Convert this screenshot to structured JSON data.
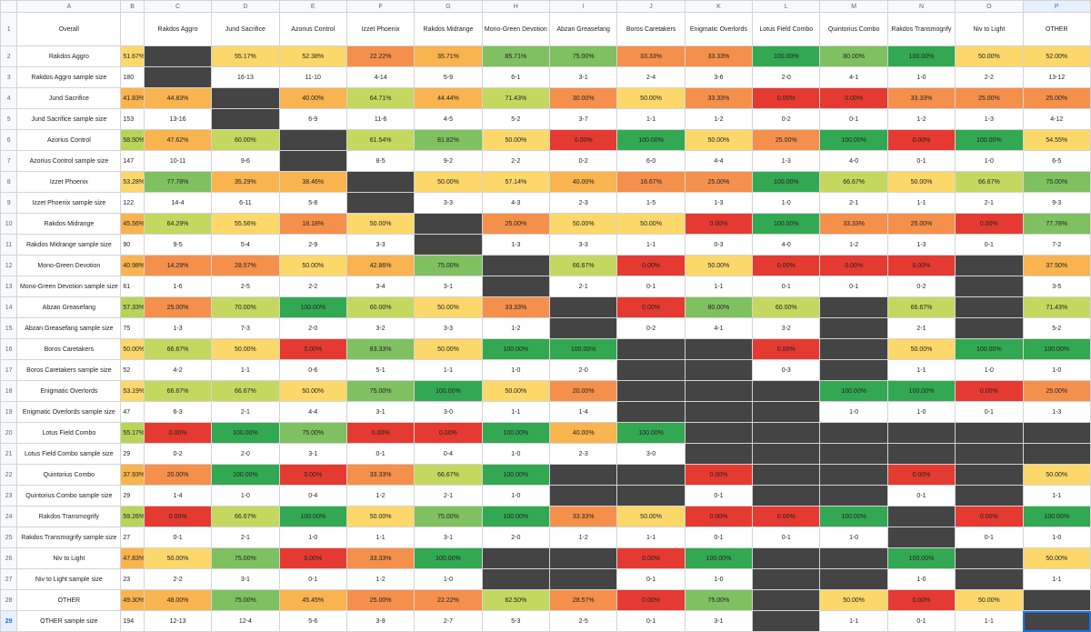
{
  "column_letters": [
    "A",
    "B",
    "C",
    "D",
    "E",
    "F",
    "G",
    "H",
    "I",
    "J",
    "K",
    "L",
    "M",
    "N",
    "O",
    "P"
  ],
  "selected_column": "P",
  "header_row": {
    "row_number": "1",
    "title": "Overall",
    "opponents": [
      "Rakdos Aggro",
      "Jund Sacrifice",
      "Azorius Control",
      "Izzet Phoenix",
      "Rakdos Midrange",
      "Mono-Green Devotion",
      "Abzan Greasefang",
      "Boros Caretakers",
      "Enigmatic Overlords",
      "Lotus Field Combo",
      "Quintorius Combo",
      "Rakdos Transmogrify",
      "Niv to Light",
      "OTHER"
    ]
  },
  "colors": {
    "dark": "#444444",
    "red": "#e53a31",
    "orange": "#f4904b",
    "light_orange": "#f9b34f",
    "yellow": "#fcd86b",
    "light_green": "#c4d85f",
    "green": "#7fc060",
    "dark_green": "#32a852",
    "winrate_orange": "#f9b34f",
    "winrate_yellow": "#fcd86b",
    "winrate_green": "#b8d45a"
  },
  "rows": [
    {
      "num": "2",
      "label": "Rakdos Aggro",
      "wr": "51.67%",
      "cells": [
        "",
        "55.17%",
        "52.38%",
        "22.22%",
        "35.71%",
        "85.71%",
        "75.00%",
        "33.33%",
        "33.33%",
        "100.00%",
        "80.00%",
        "100.00%",
        "50.00%",
        "52.00%"
      ]
    },
    {
      "num": "3",
      "label": "Rakdos Aggro sample size",
      "wr": "180",
      "cells": [
        "",
        "16-13",
        "11-10",
        "4-14",
        "5-9",
        "6-1",
        "3-1",
        "2-4",
        "3-6",
        "2-0",
        "4-1",
        "1-0",
        "2-2",
        "13-12"
      ]
    },
    {
      "num": "4",
      "label": "Jund Sacrifice",
      "wr": "41.83%",
      "cells": [
        "44.83%",
        "",
        "40.00%",
        "64.71%",
        "44.44%",
        "71.43%",
        "30.00%",
        "50.00%",
        "33.33%",
        "0.00%",
        "0.00%",
        "33.33%",
        "25.00%",
        "25.00%"
      ]
    },
    {
      "num": "5",
      "label": "Jund Sacrifice sample size",
      "wr": "153",
      "cells": [
        "13-16",
        "",
        "6-9",
        "11-6",
        "4-5",
        "5-2",
        "3-7",
        "1-1",
        "1-2",
        "0-2",
        "0-1",
        "1-2",
        "1-3",
        "4-12"
      ]
    },
    {
      "num": "6",
      "label": "Azorius Control",
      "wr": "58.50%",
      "cells": [
        "47.62%",
        "60.00%",
        "",
        "61.54%",
        "81.82%",
        "50.00%",
        "0.00%",
        "100.00%",
        "50.00%",
        "25.00%",
        "100.00%",
        "0.00%",
        "100.00%",
        "54.55%"
      ]
    },
    {
      "num": "7",
      "label": "Azorius Control sample size",
      "wr": "147",
      "cells": [
        "10-11",
        "9-6",
        "",
        "8-5",
        "9-2",
        "2-2",
        "0-2",
        "6-0",
        "4-4",
        "1-3",
        "4-0",
        "0-1",
        "1-0",
        "6-5"
      ]
    },
    {
      "num": "8",
      "label": "Izzet Phoenix",
      "wr": "53.28%",
      "cells": [
        "77.78%",
        "35.29%",
        "38.46%",
        "",
        "50.00%",
        "57.14%",
        "40.00%",
        "16.67%",
        "25.00%",
        "100.00%",
        "66.67%",
        "50.00%",
        "66.67%",
        "75.00%"
      ]
    },
    {
      "num": "9",
      "label": "Izzet Phoenix sample size",
      "wr": "122",
      "cells": [
        "14-4",
        "6-11",
        "5-8",
        "",
        "3-3",
        "4-3",
        "2-3",
        "1-5",
        "1-3",
        "1-0",
        "2-1",
        "1-1",
        "2-1",
        "9-3"
      ]
    },
    {
      "num": "10",
      "label": "Rakdos Midrange",
      "wr": "45.56%",
      "cells": [
        "64.29%",
        "55.56%",
        "18.18%",
        "50.00%",
        "",
        "25.00%",
        "50.00%",
        "50.00%",
        "0.00%",
        "100.00%",
        "33.33%",
        "25.00%",
        "0.00%",
        "77.78%"
      ]
    },
    {
      "num": "11",
      "label": "Rakdos Midrange sample size",
      "wr": "90",
      "cells": [
        "9-5",
        "5-4",
        "2-9",
        "3-3",
        "",
        "1-3",
        "3-3",
        "1-1",
        "0-3",
        "4-0",
        "1-2",
        "1-3",
        "0-1",
        "7-2"
      ]
    },
    {
      "num": "12",
      "label": "Mono-Green Devotion",
      "wr": "40.98%",
      "cells": [
        "14.29%",
        "28.57%",
        "50.00%",
        "42.86%",
        "75.00%",
        "",
        "66.67%",
        "0.00%",
        "50.00%",
        "0.00%",
        "0.00%",
        "0.00%",
        "",
        "37.50%"
      ]
    },
    {
      "num": "13",
      "label": "Mono-Green Devotion sample size",
      "wr": "61",
      "cells": [
        "1-6",
        "2-5",
        "2-2",
        "3-4",
        "3-1",
        "",
        "2-1",
        "0-1",
        "1-1",
        "0-1",
        "0-1",
        "0-2",
        "",
        "3-5"
      ]
    },
    {
      "num": "14",
      "label": "Abzan Greasefang",
      "wr": "57.33%",
      "cells": [
        "25.00%",
        "70.00%",
        "100.00%",
        "60.00%",
        "50.00%",
        "33.33%",
        "",
        "0.00%",
        "80.00%",
        "60.00%",
        "",
        "66.67%",
        "",
        "71.43%"
      ]
    },
    {
      "num": "15",
      "label": "Abzan Greasefang sample size",
      "wr": "75",
      "cells": [
        "1-3",
        "7-3",
        "2-0",
        "3-2",
        "3-3",
        "1-2",
        "",
        "0-2",
        "4-1",
        "3-2",
        "",
        "2-1",
        "",
        "5-2"
      ]
    },
    {
      "num": "16",
      "label": "Boros Caretakers",
      "wr": "50.00%",
      "cells": [
        "66.67%",
        "50.00%",
        "0.00%",
        "83.33%",
        "50.00%",
        "100.00%",
        "100.00%",
        "",
        "",
        "0.00%",
        "",
        "50.00%",
        "100.00%",
        "100.00%"
      ]
    },
    {
      "num": "17",
      "label": "Boros Caretakers sample size",
      "wr": "52",
      "cells": [
        "4-2",
        "1-1",
        "0-6",
        "5-1",
        "1-1",
        "1-0",
        "2-0",
        "",
        "",
        "0-3",
        "",
        "1-1",
        "1-0",
        "1-0"
      ]
    },
    {
      "num": "18",
      "label": "Enigmatic Overlords",
      "wr": "53.19%",
      "cells": [
        "66.67%",
        "66.67%",
        "50.00%",
        "75.00%",
        "100.00%",
        "50.00%",
        "20.00%",
        "",
        "",
        "",
        "100.00%",
        "100.00%",
        "0.00%",
        "25.00%"
      ]
    },
    {
      "num": "19",
      "label": "Enigmatic Overlords sample size",
      "wr": "47",
      "cells": [
        "6-3",
        "2-1",
        "4-4",
        "3-1",
        "3-0",
        "1-1",
        "1-4",
        "",
        "",
        "",
        "1-0",
        "1-0",
        "0-1",
        "1-3"
      ]
    },
    {
      "num": "20",
      "label": "Lotus Field Combo",
      "wr": "55.17%",
      "cells": [
        "0.00%",
        "100.00%",
        "75.00%",
        "0.00%",
        "0.00%",
        "100.00%",
        "40.00%",
        "100.00%",
        "",
        "",
        "",
        "",
        "",
        ""
      ]
    },
    {
      "num": "21",
      "label": "Lotus Field Combo sample size",
      "wr": "29",
      "cells": [
        "0-2",
        "2-0",
        "3-1",
        "0-1",
        "0-4",
        "1-0",
        "2-3",
        "3-0",
        "",
        "",
        "",
        "",
        "",
        ""
      ]
    },
    {
      "num": "22",
      "label": "Quintorius Combo",
      "wr": "37.93%",
      "cells": [
        "20.00%",
        "100.00%",
        "0.00%",
        "33.33%",
        "66.67%",
        "100.00%",
        "",
        "",
        "0.00%",
        "",
        "",
        "0.00%",
        "",
        "50.00%"
      ]
    },
    {
      "num": "23",
      "label": "Quintorius Combo sample size",
      "wr": "29",
      "cells": [
        "1-4",
        "1-0",
        "0-4",
        "1-2",
        "2-1",
        "1-0",
        "",
        "",
        "0-1",
        "",
        "",
        "0-1",
        "",
        "1-1"
      ]
    },
    {
      "num": "24",
      "label": "Rakdos Transmogrify",
      "wr": "59.26%",
      "cells": [
        "0.00%",
        "66.67%",
        "100.00%",
        "50.00%",
        "75.00%",
        "100.00%",
        "33.33%",
        "50.00%",
        "0.00%",
        "0.00%",
        "100.00%",
        "",
        "0.00%",
        "100.00%"
      ]
    },
    {
      "num": "25",
      "label": "Rakdos Transmogrify sample size",
      "wr": "27",
      "cells": [
        "0-1",
        "2-1",
        "1-0",
        "1-1",
        "3-1",
        "2-0",
        "1-2",
        "1-1",
        "0-1",
        "0-1",
        "1-0",
        "",
        "0-1",
        "1-0"
      ]
    },
    {
      "num": "26",
      "label": "Niv to Light",
      "wr": "47.83%",
      "cells": [
        "50.00%",
        "75.00%",
        "0.00%",
        "33.33%",
        "100.00%",
        "",
        "",
        "0.00%",
        "100.00%",
        "",
        "",
        "100.00%",
        "",
        "50.00%"
      ]
    },
    {
      "num": "27",
      "label": "Niv to Light sample size",
      "wr": "23",
      "cells": [
        "2-2",
        "3-1",
        "0-1",
        "1-2",
        "1-0",
        "",
        "",
        "0-1",
        "1-0",
        "",
        "",
        "1-0",
        "",
        "1-1"
      ]
    },
    {
      "num": "28",
      "label": "OTHER",
      "wr": "49.30%",
      "cells": [
        "48.00%",
        "75.00%",
        "45.45%",
        "25.00%",
        "22.22%",
        "62.50%",
        "28.57%",
        "0.00%",
        "75.00%",
        "",
        "50.00%",
        "0.00%",
        "50.00%",
        ""
      ]
    },
    {
      "num": "29",
      "label": "OTHER sample size",
      "wr": "194",
      "cells": [
        "12-13",
        "12-4",
        "5-6",
        "3-9",
        "2-7",
        "5-3",
        "2-5",
        "0-1",
        "3-1",
        "",
        "1-1",
        "0-1",
        "1-1",
        ""
      ]
    }
  ],
  "selected_row": "29"
}
